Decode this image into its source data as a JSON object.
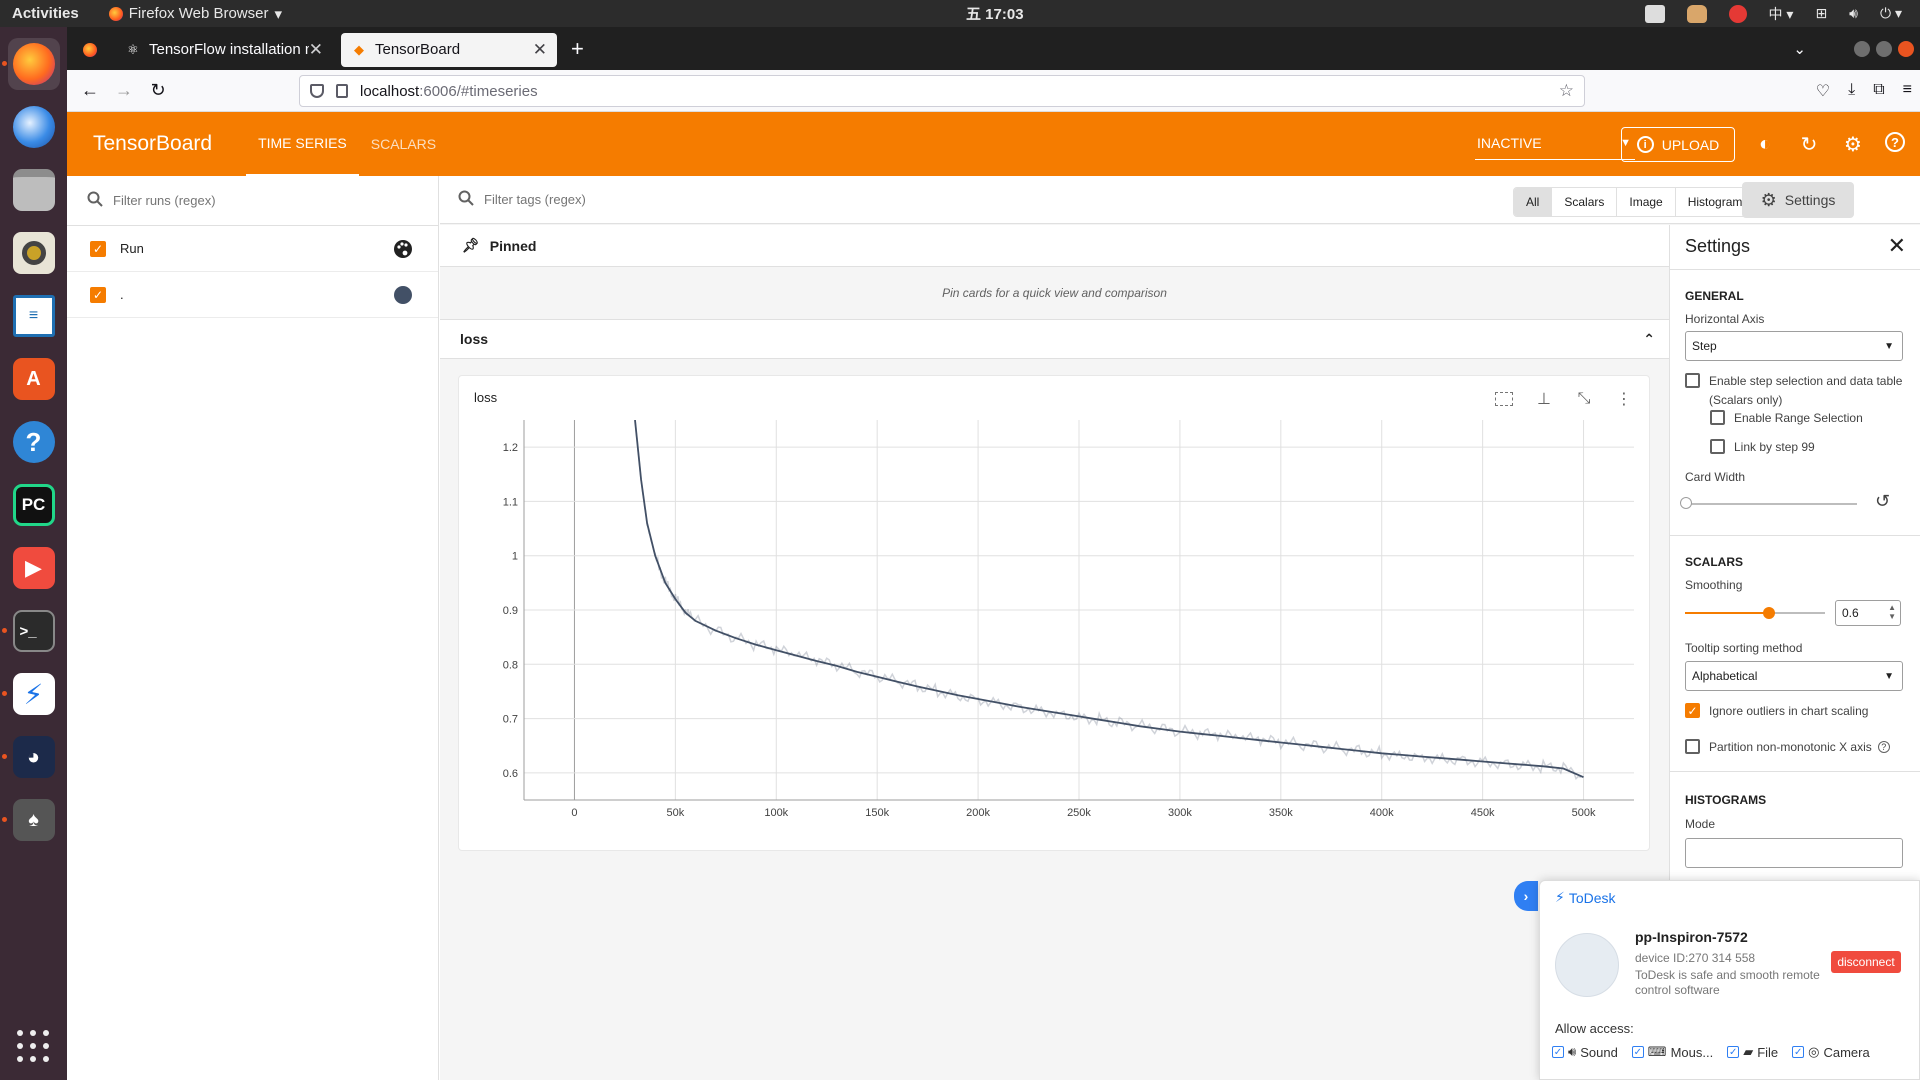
{
  "system": {
    "activities": "Activities",
    "app_menu": "Firefox Web Browser",
    "clock": "五 17:03",
    "input_method": "中"
  },
  "browser": {
    "tabs": [
      {
        "title": "TensorFlow installation n",
        "active": false
      },
      {
        "title": "TensorBoard",
        "active": true
      }
    ],
    "url_host": "localhost",
    "url_path": ":6006/#timeseries"
  },
  "tensorboard": {
    "brand": "TensorBoard",
    "nav_tabs": [
      "TIME SERIES",
      "SCALARS"
    ],
    "status": "INACTIVE",
    "upload_label": "UPLOAD",
    "runs_filter_placeholder": "Filter runs (regex)",
    "runs": [
      {
        "label": "Run",
        "checked": true,
        "color": "#000000"
      },
      {
        "label": ".",
        "checked": true,
        "color": "#425066"
      }
    ],
    "tags_filter_placeholder": "Filter tags (regex)",
    "type_filters": [
      "All",
      "Scalars",
      "Image",
      "Histogram"
    ],
    "settings_button": "Settings",
    "pinned_title": "Pinned",
    "pinned_empty": "Pin cards for a quick view and comparison",
    "group_name": "loss",
    "card_title": "loss"
  },
  "settings_panel": {
    "title": "Settings",
    "general": {
      "heading": "GENERAL",
      "horizontal_axis_label": "Horizontal Axis",
      "horizontal_axis_value": "Step",
      "step_selection_line1": "Enable step selection and data table",
      "step_selection_line2": "(Scalars only)",
      "range_selection": "Enable Range Selection",
      "link_by_step": "Link by step 99",
      "card_width_label": "Card Width"
    },
    "scalars": {
      "heading": "SCALARS",
      "smoothing_label": "Smoothing",
      "smoothing_value": "0.6",
      "smoothing_fraction": 0.6,
      "tooltip_label": "Tooltip sorting method",
      "tooltip_value": "Alphabetical",
      "ignore_outliers": "Ignore outliers in chart scaling",
      "partition": "Partition non-monotonic X axis"
    },
    "histograms": {
      "heading": "HISTOGRAMS",
      "mode_label": "Mode"
    }
  },
  "todesk": {
    "brand": "ToDesk",
    "device_name": "pp-Inspiron-7572",
    "device_id": "device ID:270 314 558",
    "tagline1": "ToDesk is safe and smooth remote",
    "tagline2": "control software",
    "disconnect": "disconnect",
    "allow_access": "Allow access:",
    "permissions": [
      "Sound",
      "Mous...",
      "File",
      "Camera"
    ]
  },
  "chart_data": {
    "type": "line",
    "title": "loss",
    "xlabel": "",
    "ylabel": "",
    "x_ticks": [
      "0",
      "50k",
      "100k",
      "150k",
      "200k",
      "250k",
      "300k",
      "350k",
      "400k",
      "450k",
      "500k"
    ],
    "y_ticks": [
      "0.6",
      "0.7",
      "0.8",
      "0.9",
      "1",
      "1.1",
      "1.2"
    ],
    "xlim": [
      -25000,
      525000
    ],
    "ylim": [
      0.55,
      1.25
    ],
    "grid": true,
    "series": [
      {
        "color": "#425066",
        "x": [
          30000,
          33000,
          36000,
          40000,
          45000,
          50000,
          55000,
          60000,
          70000,
          80000,
          90000,
          100000,
          110000,
          120000,
          130000,
          140000,
          150000,
          160000,
          170000,
          180000,
          190000,
          200000,
          210000,
          220000,
          230000,
          240000,
          250000,
          260000,
          270000,
          280000,
          290000,
          300000,
          310000,
          320000,
          330000,
          340000,
          350000,
          360000,
          370000,
          380000,
          390000,
          400000,
          410000,
          420000,
          430000,
          440000,
          450000,
          460000,
          470000,
          480000,
          490000,
          500000
        ],
        "y": [
          1.25,
          1.14,
          1.06,
          1.0,
          0.95,
          0.92,
          0.895,
          0.88,
          0.862,
          0.848,
          0.836,
          0.826,
          0.816,
          0.806,
          0.797,
          0.786,
          0.777,
          0.768,
          0.759,
          0.751,
          0.743,
          0.736,
          0.729,
          0.722,
          0.716,
          0.71,
          0.704,
          0.698,
          0.692,
          0.686,
          0.681,
          0.676,
          0.672,
          0.668,
          0.664,
          0.66,
          0.656,
          0.652,
          0.648,
          0.644,
          0.64,
          0.636,
          0.633,
          0.63,
          0.627,
          0.624,
          0.621,
          0.618,
          0.615,
          0.612,
          0.608,
          0.592
        ]
      }
    ]
  }
}
